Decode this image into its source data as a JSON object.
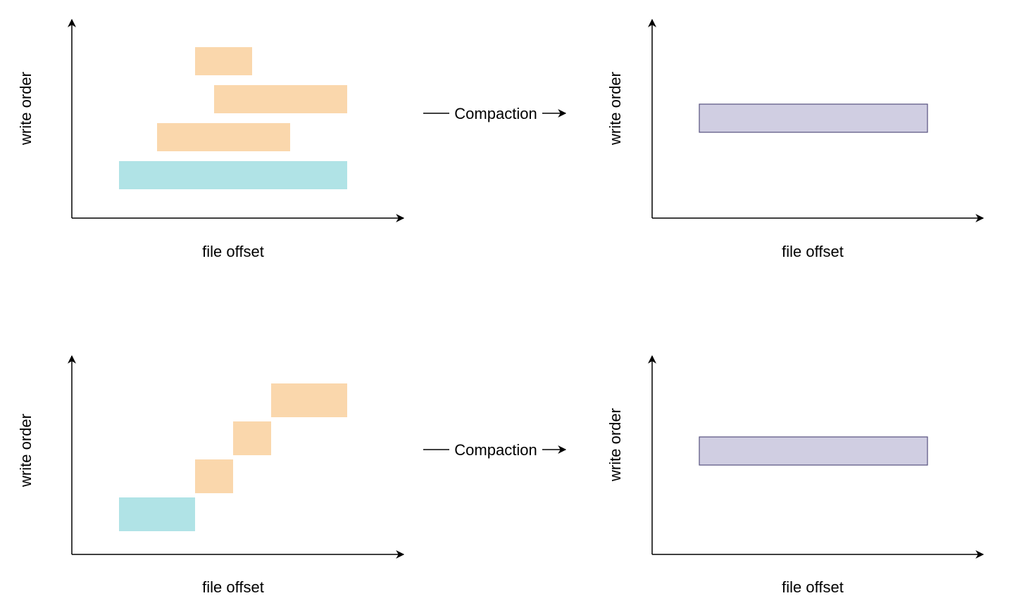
{
  "colors": {
    "old_write": "#fad7ac",
    "base_write": "#b0e3e6",
    "compacted": "#d0cee2",
    "compacted_border": "#56517e",
    "axis": "#000000"
  },
  "rows": [
    {
      "before": {
        "xlabel": "file offset",
        "ylabel": "write order",
        "blocks": [
          "old-write",
          "old-write",
          "old-write",
          "base-write"
        ]
      },
      "transition": {
        "label": "Compaction"
      },
      "after": {
        "xlabel": "file offset",
        "ylabel": "write order",
        "blocks": [
          "compacted"
        ]
      }
    },
    {
      "before": {
        "xlabel": "file offset",
        "ylabel": "write order",
        "blocks": [
          "old-write",
          "old-write",
          "old-write",
          "base-write"
        ]
      },
      "transition": {
        "label": "Compaction"
      },
      "after": {
        "xlabel": "file offset",
        "ylabel": "write order",
        "blocks": [
          "compacted"
        ]
      }
    }
  ]
}
